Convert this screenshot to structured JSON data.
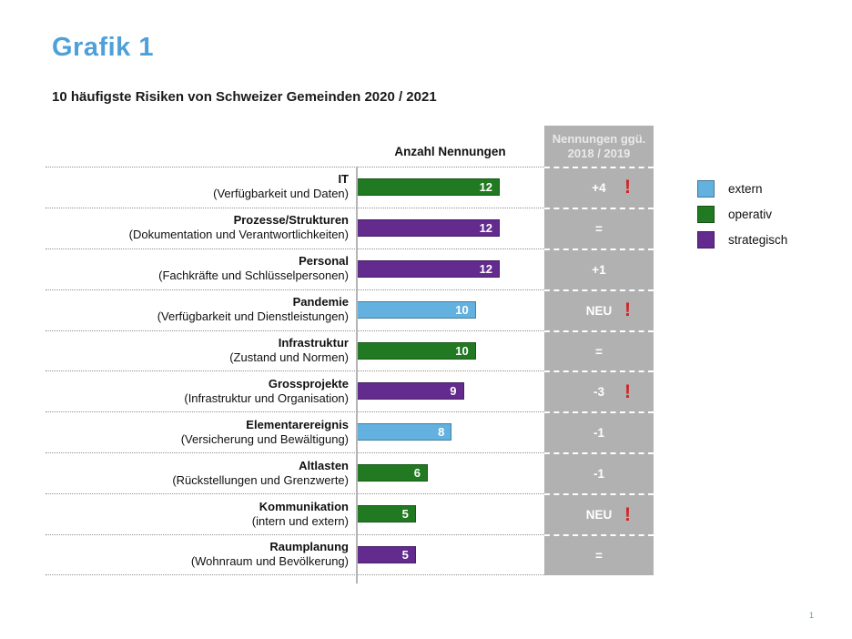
{
  "page": {
    "title": "Grafik 1",
    "page_number": "1"
  },
  "chart_data": {
    "type": "bar",
    "orientation": "horizontal",
    "title": "10 häufigste Risiken von Schweizer Gemeinden 2020 / 2021",
    "value_axis_label": "Anzahl Nennungen",
    "comparison_column_header": "Nennungen ggü. 2018 / 2019",
    "value_range": [
      0,
      12
    ],
    "grid": "dotted row separators",
    "legend_position": "right",
    "alert_glyph": "!",
    "legend": [
      {
        "label": "extern",
        "category": "extern"
      },
      {
        "label": "operativ",
        "category": "operativ"
      },
      {
        "label": "strategisch",
        "category": "strategisch"
      }
    ],
    "rows": [
      {
        "label": "IT",
        "sublabel": "(Verfügbarkeit und Daten)",
        "value": 12,
        "category": "operativ",
        "change": "+4",
        "alert": true
      },
      {
        "label": "Prozesse/Strukturen",
        "sublabel": "(Dokumentation und Verantwortlichkeiten)",
        "value": 12,
        "category": "strategisch",
        "change": "=",
        "alert": false
      },
      {
        "label": "Personal",
        "sublabel": "(Fachkräfte und Schlüsselpersonen)",
        "value": 12,
        "category": "strategisch",
        "change": "+1",
        "alert": false
      },
      {
        "label": "Pandemie",
        "sublabel": "(Verfügbarkeit und Dienstleistungen)",
        "value": 10,
        "category": "extern",
        "change": "NEU",
        "alert": true
      },
      {
        "label": "Infrastruktur",
        "sublabel": "(Zustand und Normen)",
        "value": 10,
        "category": "operativ",
        "change": "=",
        "alert": false
      },
      {
        "label": "Grossprojekte",
        "sublabel": "(Infrastruktur und Organisation)",
        "value": 9,
        "category": "strategisch",
        "change": "-3",
        "alert": true
      },
      {
        "label": "Elementarereignis",
        "sublabel": "(Versicherung und Bewältigung)",
        "value": 8,
        "category": "extern",
        "change": "-1",
        "alert": false
      },
      {
        "label": "Altlasten",
        "sublabel": "(Rückstellungen und Grenzwerte)",
        "value": 6,
        "category": "operativ",
        "change": "-1",
        "alert": false
      },
      {
        "label": "Kommunikation",
        "sublabel": "(intern und extern)",
        "value": 5,
        "category": "operativ",
        "change": "NEU",
        "alert": true
      },
      {
        "label": "Raumplanung",
        "sublabel": "(Wohnraum und Bevölkerung)",
        "value": 5,
        "category": "strategisch",
        "change": "=",
        "alert": false
      }
    ],
    "colors": {
      "extern": "#62b1de",
      "operativ": "#217a21",
      "strategisch": "#632b8e",
      "alert": "#d02427",
      "comparison_column_bg": "#b1b1b1",
      "title_accent": "#4fa0d8"
    }
  }
}
